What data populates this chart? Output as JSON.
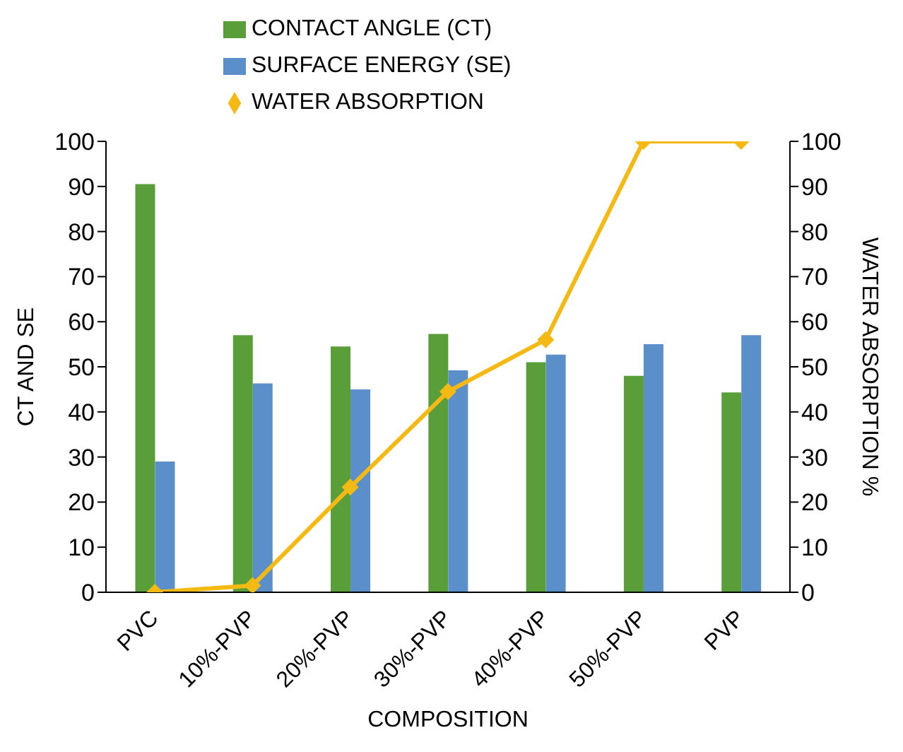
{
  "chart_data": {
    "type": "bar",
    "xlabel": "COMPOSITION",
    "ylabel": "CT AND SE",
    "y2label": "WATER ABSORPTION %",
    "categories": [
      "PVC",
      "10%-PVP",
      "20%-PVP",
      "30%-PVP",
      "40%-PVP",
      "50%-PVP",
      "PVP"
    ],
    "series": [
      {
        "name": "CONTACT ANGLE (CT)",
        "color": "#5a9e3a",
        "values": [
          90.5,
          57,
          54.5,
          57.3,
          51,
          48,
          44.3
        ]
      },
      {
        "name": "SURFACE ENERGY (SE)",
        "color": "#5b8fc9",
        "values": [
          29,
          46.3,
          45,
          49.2,
          52.7,
          55,
          57
        ]
      },
      {
        "name": "WATER ABSORPTION",
        "type": "line",
        "axis": "y2",
        "color": "#f5b914",
        "values": [
          0,
          1.5,
          23.3,
          44.5,
          56,
          100,
          100
        ]
      }
    ],
    "ylim": [
      0,
      100
    ],
    "yticks": [
      0,
      10,
      20,
      30,
      40,
      50,
      60,
      70,
      80,
      90,
      100
    ],
    "y2lim": [
      0,
      100
    ],
    "y2ticks": [
      0,
      10,
      20,
      30,
      40,
      50,
      60,
      70,
      80,
      90,
      100
    ],
    "legend": "top",
    "marker": "diamond",
    "line_style": "solid"
  }
}
